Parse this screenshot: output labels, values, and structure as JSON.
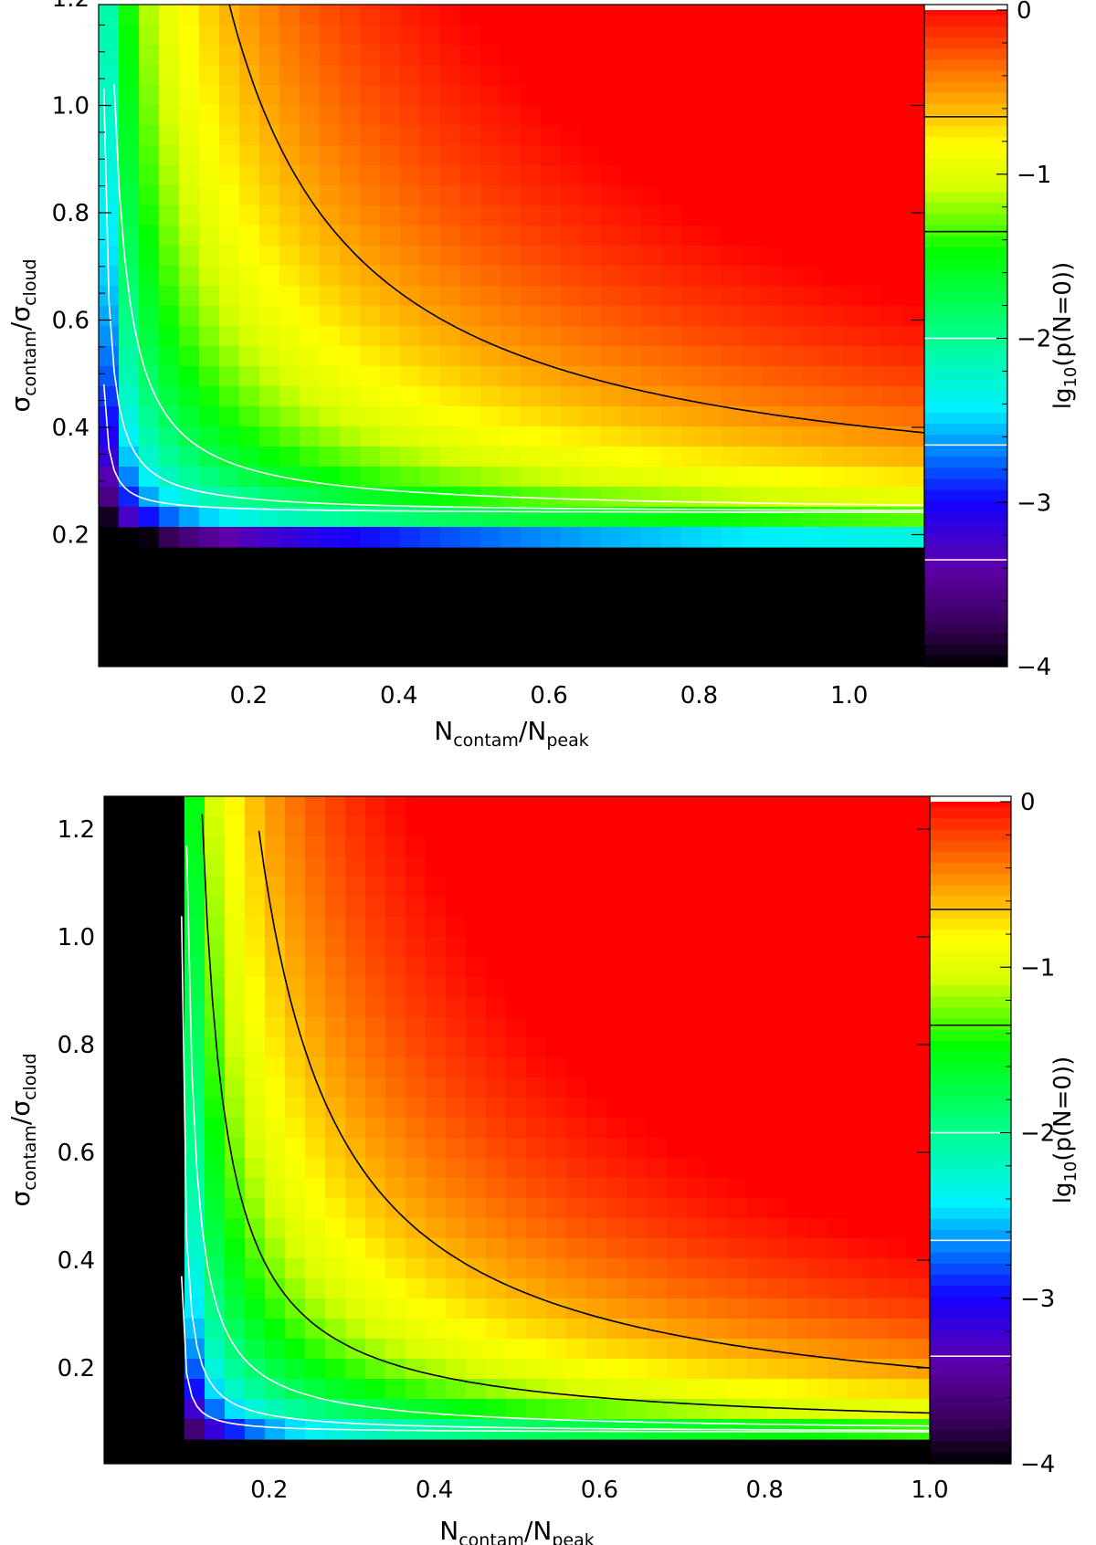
{
  "chart_data": [
    {
      "type": "heatmap",
      "title": "",
      "xlabel": {
        "base": "N",
        "sub1": "contam",
        "sep": "/",
        "base2": "N",
        "sub2": "peak"
      },
      "ylabel": {
        "base": "σ",
        "sub1": "contam",
        "sep": "/",
        "base2": "σ",
        "sub2": "cloud"
      },
      "xlim": [
        0.0,
        1.1
      ],
      "ylim": [
        0.0,
        1.27
      ],
      "xticks": [
        "0.2",
        "0.4",
        "0.6",
        "0.8",
        "1.0"
      ],
      "yticks": [
        "0.2",
        "0.4",
        "0.6",
        "0.8",
        "1.0",
        "1.2"
      ],
      "colorbar": {
        "label": "lg10(p(N=0))",
        "label_parts": {
          "base": "lg",
          "sub": "10",
          "rest": "(p(N=0))"
        },
        "range": [
          -4,
          0
        ],
        "ticks": [
          "0",
          "−1",
          "−2",
          "−3",
          "−4"
        ],
        "contour_levels": [
          -0.65,
          -1.35,
          -2.0,
          -2.65,
          -3.35
        ]
      },
      "model": {
        "x_shift": 0.0,
        "y_offset": 0.24,
        "y_floor": 0.18,
        "scale": 0.5
      },
      "contours": [
        {
          "level": -0.65,
          "color": "#000000"
        },
        {
          "level": -2.0,
          "color": "#ffffff"
        },
        {
          "level": -2.65,
          "color": "#ffffff"
        },
        {
          "level": -3.35,
          "color": "#ffffff"
        }
      ]
    },
    {
      "type": "heatmap",
      "title": "",
      "xlabel": {
        "base": "N",
        "sub1": "contam",
        "sep": "/",
        "base2": "N",
        "sub2": "peak"
      },
      "ylabel": {
        "base": "σ",
        "sub1": "contam",
        "sep": "/",
        "base2": "σ",
        "sub2": "cloud"
      },
      "xlim": [
        0.0,
        1.0
      ],
      "ylim": [
        0.05,
        1.27
      ],
      "xticks": [
        "0.2",
        "0.4",
        "0.6",
        "0.8",
        "1.0"
      ],
      "yticks": [
        "0.2",
        "0.4",
        "0.6",
        "0.8",
        "1.0",
        "1.2"
      ],
      "colorbar": {
        "label": "lg10(p(N=0))",
        "label_parts": {
          "base": "lg",
          "sub": "10",
          "rest": "(p(N=0))"
        },
        "range": [
          -4,
          0
        ],
        "ticks": [
          "0",
          "−1",
          "−2",
          "−3",
          "−4"
        ],
        "contour_levels": [
          -0.65,
          -1.35,
          -2.0,
          -2.65,
          -3.35
        ]
      },
      "model": {
        "x_shift": 0.09,
        "y_offset": 0.08,
        "y_floor": 0.04,
        "scale": 0.33
      },
      "contours": [
        {
          "level": -0.65,
          "color": "#000000"
        },
        {
          "level": -1.35,
          "color": "#000000"
        },
        {
          "level": -2.0,
          "color": "#ffffff"
        },
        {
          "level": -2.65,
          "color": "#ffffff"
        },
        {
          "level": -3.35,
          "color": "#ffffff"
        }
      ]
    }
  ]
}
